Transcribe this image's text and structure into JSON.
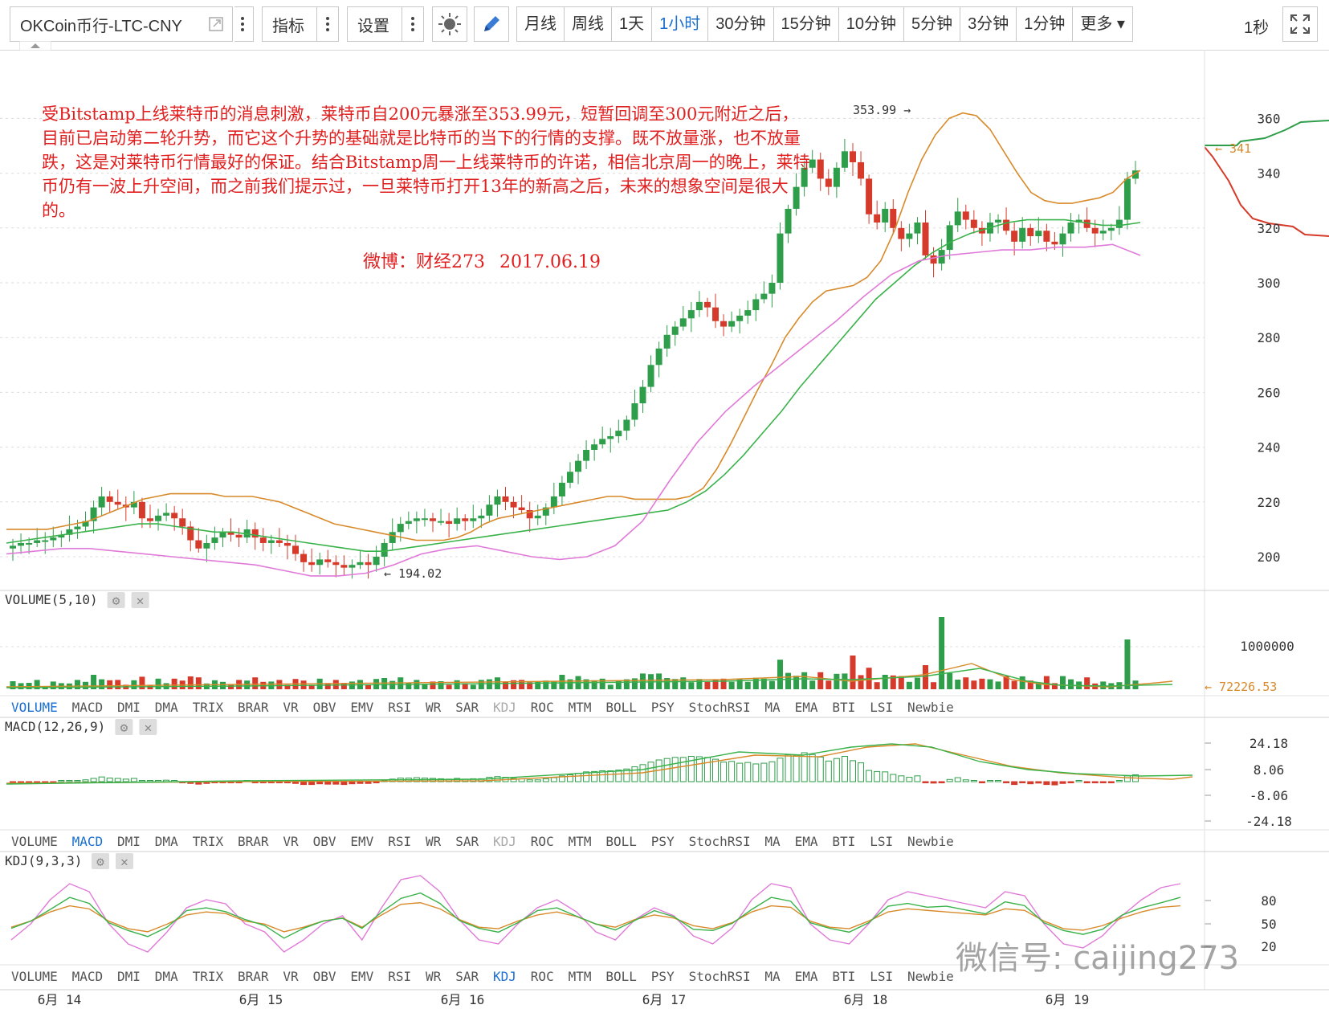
{
  "toolbar": {
    "symbol": "OKCoin币行-LTC-CNY",
    "indicator_label": "指标",
    "settings_label": "设置",
    "periods": [
      "月线",
      "周线",
      "1天",
      "1小时",
      "30分钟",
      "15分钟",
      "10分钟",
      "5分钟",
      "3分钟",
      "1分钟",
      "更多"
    ],
    "active_period": "1小时",
    "refresh": "1秒"
  },
  "annotation": {
    "text": "受Bitstamp上线莱特币的消息刺激，莱特币自200元暴涨至353.99元，短暂回调至300元附近之后，目前已启动第二轮升势，而它这个升势的基础就是比特币的当下的行情的支撑。既不放量涨，也不放量跌，这是对莱特币行情最好的保证。结合Bitstamp周一上线莱特币的许诺，相信北京周一的晚上，莱特币仍有一波上升空间，而之前我们提示过，一旦莱特币打开13年的新高之后，未来的想象空间是很大的。",
    "source": "微博：财经273",
    "date": "2017.06.19"
  },
  "watermark": "微信号: caijing273",
  "colors": {
    "up": "#2e9e4a",
    "down": "#d63a2a",
    "ma_orange": "#d88a2a",
    "ma_green": "#39b24a",
    "boll_pink": "#e07ad8",
    "accent": "#1a6fd0"
  },
  "chart_data": [
    {
      "type": "candlestick",
      "title": "OKCoin币行-LTC-CNY 1小时",
      "price_ticks": [
        200,
        220,
        240,
        260,
        280,
        300,
        320,
        340,
        360
      ],
      "high_label": "353.99",
      "low_label": "194.02",
      "last_price": "341",
      "x_labels": [
        "6月 14",
        "6月 15",
        "6月 16",
        "6月 17",
        "6月 18",
        "6月 19"
      ],
      "close": [
        204,
        205,
        205,
        206,
        206,
        207,
        208,
        210,
        211,
        213,
        218,
        222,
        220,
        219,
        218,
        220,
        214,
        213,
        215,
        216,
        214,
        211,
        206,
        203,
        205,
        207,
        209,
        208,
        207,
        210,
        207,
        205,
        206,
        205,
        204,
        201,
        198,
        197,
        199,
        198,
        197,
        196,
        197,
        198,
        197,
        200,
        205,
        209,
        212,
        213,
        214,
        214,
        213,
        213,
        212,
        214,
        213,
        214,
        215,
        219,
        222,
        220,
        218,
        217,
        214,
        215,
        218,
        222,
        227,
        231,
        235,
        239,
        241,
        243,
        244,
        246,
        250,
        256,
        262,
        270,
        276,
        281,
        284,
        287,
        290,
        293,
        291,
        286,
        284,
        286,
        288,
        290,
        294,
        296,
        300,
        318,
        327,
        335,
        342,
        345,
        338,
        335,
        342,
        348,
        344,
        338,
        325,
        322,
        327,
        320,
        316,
        318,
        322,
        310,
        307,
        312,
        321,
        326,
        323,
        320,
        318,
        322,
        323,
        319,
        315,
        320,
        317,
        319,
        315,
        314,
        318,
        322,
        323,
        320,
        318,
        319,
        320,
        323,
        338,
        341
      ],
      "series": [
        {
          "name": "BOLL upper",
          "values": [
            210,
            210,
            210,
            210,
            211,
            212,
            213,
            215,
            217,
            219,
            221,
            222,
            223,
            223,
            223,
            223,
            222,
            222,
            222,
            221,
            220,
            218,
            216,
            214,
            212,
            211,
            210,
            209,
            208,
            207,
            206,
            206,
            206,
            207,
            209,
            212,
            214,
            215,
            216,
            217,
            218,
            219,
            220,
            221,
            222,
            222,
            221,
            221,
            221,
            221,
            222,
            225,
            232,
            241,
            251,
            261,
            270,
            280,
            287,
            293,
            297,
            298,
            299,
            302,
            308,
            319,
            333,
            345,
            354,
            360,
            362,
            361,
            356,
            348,
            340,
            333,
            330,
            329,
            329,
            330,
            331,
            333,
            338,
            341
          ]
        },
        {
          "name": "BOLL mid",
          "values": [
            205,
            206,
            207,
            208,
            209,
            210,
            211,
            212,
            212,
            211,
            210,
            209,
            209,
            208,
            207,
            206,
            205,
            204,
            203,
            202,
            202,
            203,
            204,
            205,
            206,
            207,
            208,
            209,
            210,
            211,
            212,
            213,
            214,
            215,
            216,
            217,
            220,
            224,
            230,
            237,
            245,
            253,
            262,
            270,
            278,
            286,
            294,
            300,
            306,
            311,
            315,
            318,
            320,
            322,
            323,
            323,
            323,
            322,
            321,
            321,
            322
          ]
        },
        {
          "name": "BOLL lower",
          "values": [
            201,
            202,
            203,
            203,
            202,
            201,
            200,
            199,
            198,
            197,
            195,
            193,
            193,
            194,
            197,
            201,
            203,
            204,
            202,
            200,
            199,
            200,
            204,
            213,
            228,
            242,
            253,
            262,
            270,
            278,
            286,
            295,
            303,
            308,
            310,
            311,
            312,
            312,
            313,
            313,
            314,
            310
          ]
        }
      ]
    },
    {
      "type": "bar",
      "title": "VOLUME(5,10)",
      "y_ticks": [
        "1000000"
      ],
      "last_label": "72226.53",
      "indicator_tabs": [
        "VOLUME",
        "MACD",
        "DMI",
        "DMA",
        "TRIX",
        "BRAR",
        "VR",
        "OBV",
        "EMV",
        "RSI",
        "WR",
        "SAR",
        "KDJ",
        "ROC",
        "MTM",
        "BOLL",
        "PSY",
        "StochRSI",
        "MA",
        "EMA",
        "BTI",
        "LSI",
        "Newbie"
      ]
    },
    {
      "type": "line",
      "title": "MACD(12,26,9)",
      "y_ticks": [
        "24.18",
        "8.06",
        "-8.06",
        "-24.18"
      ]
    },
    {
      "type": "line",
      "title": "KDJ(9,3,3)",
      "y_ticks": [
        "80",
        "50",
        "20"
      ]
    }
  ]
}
